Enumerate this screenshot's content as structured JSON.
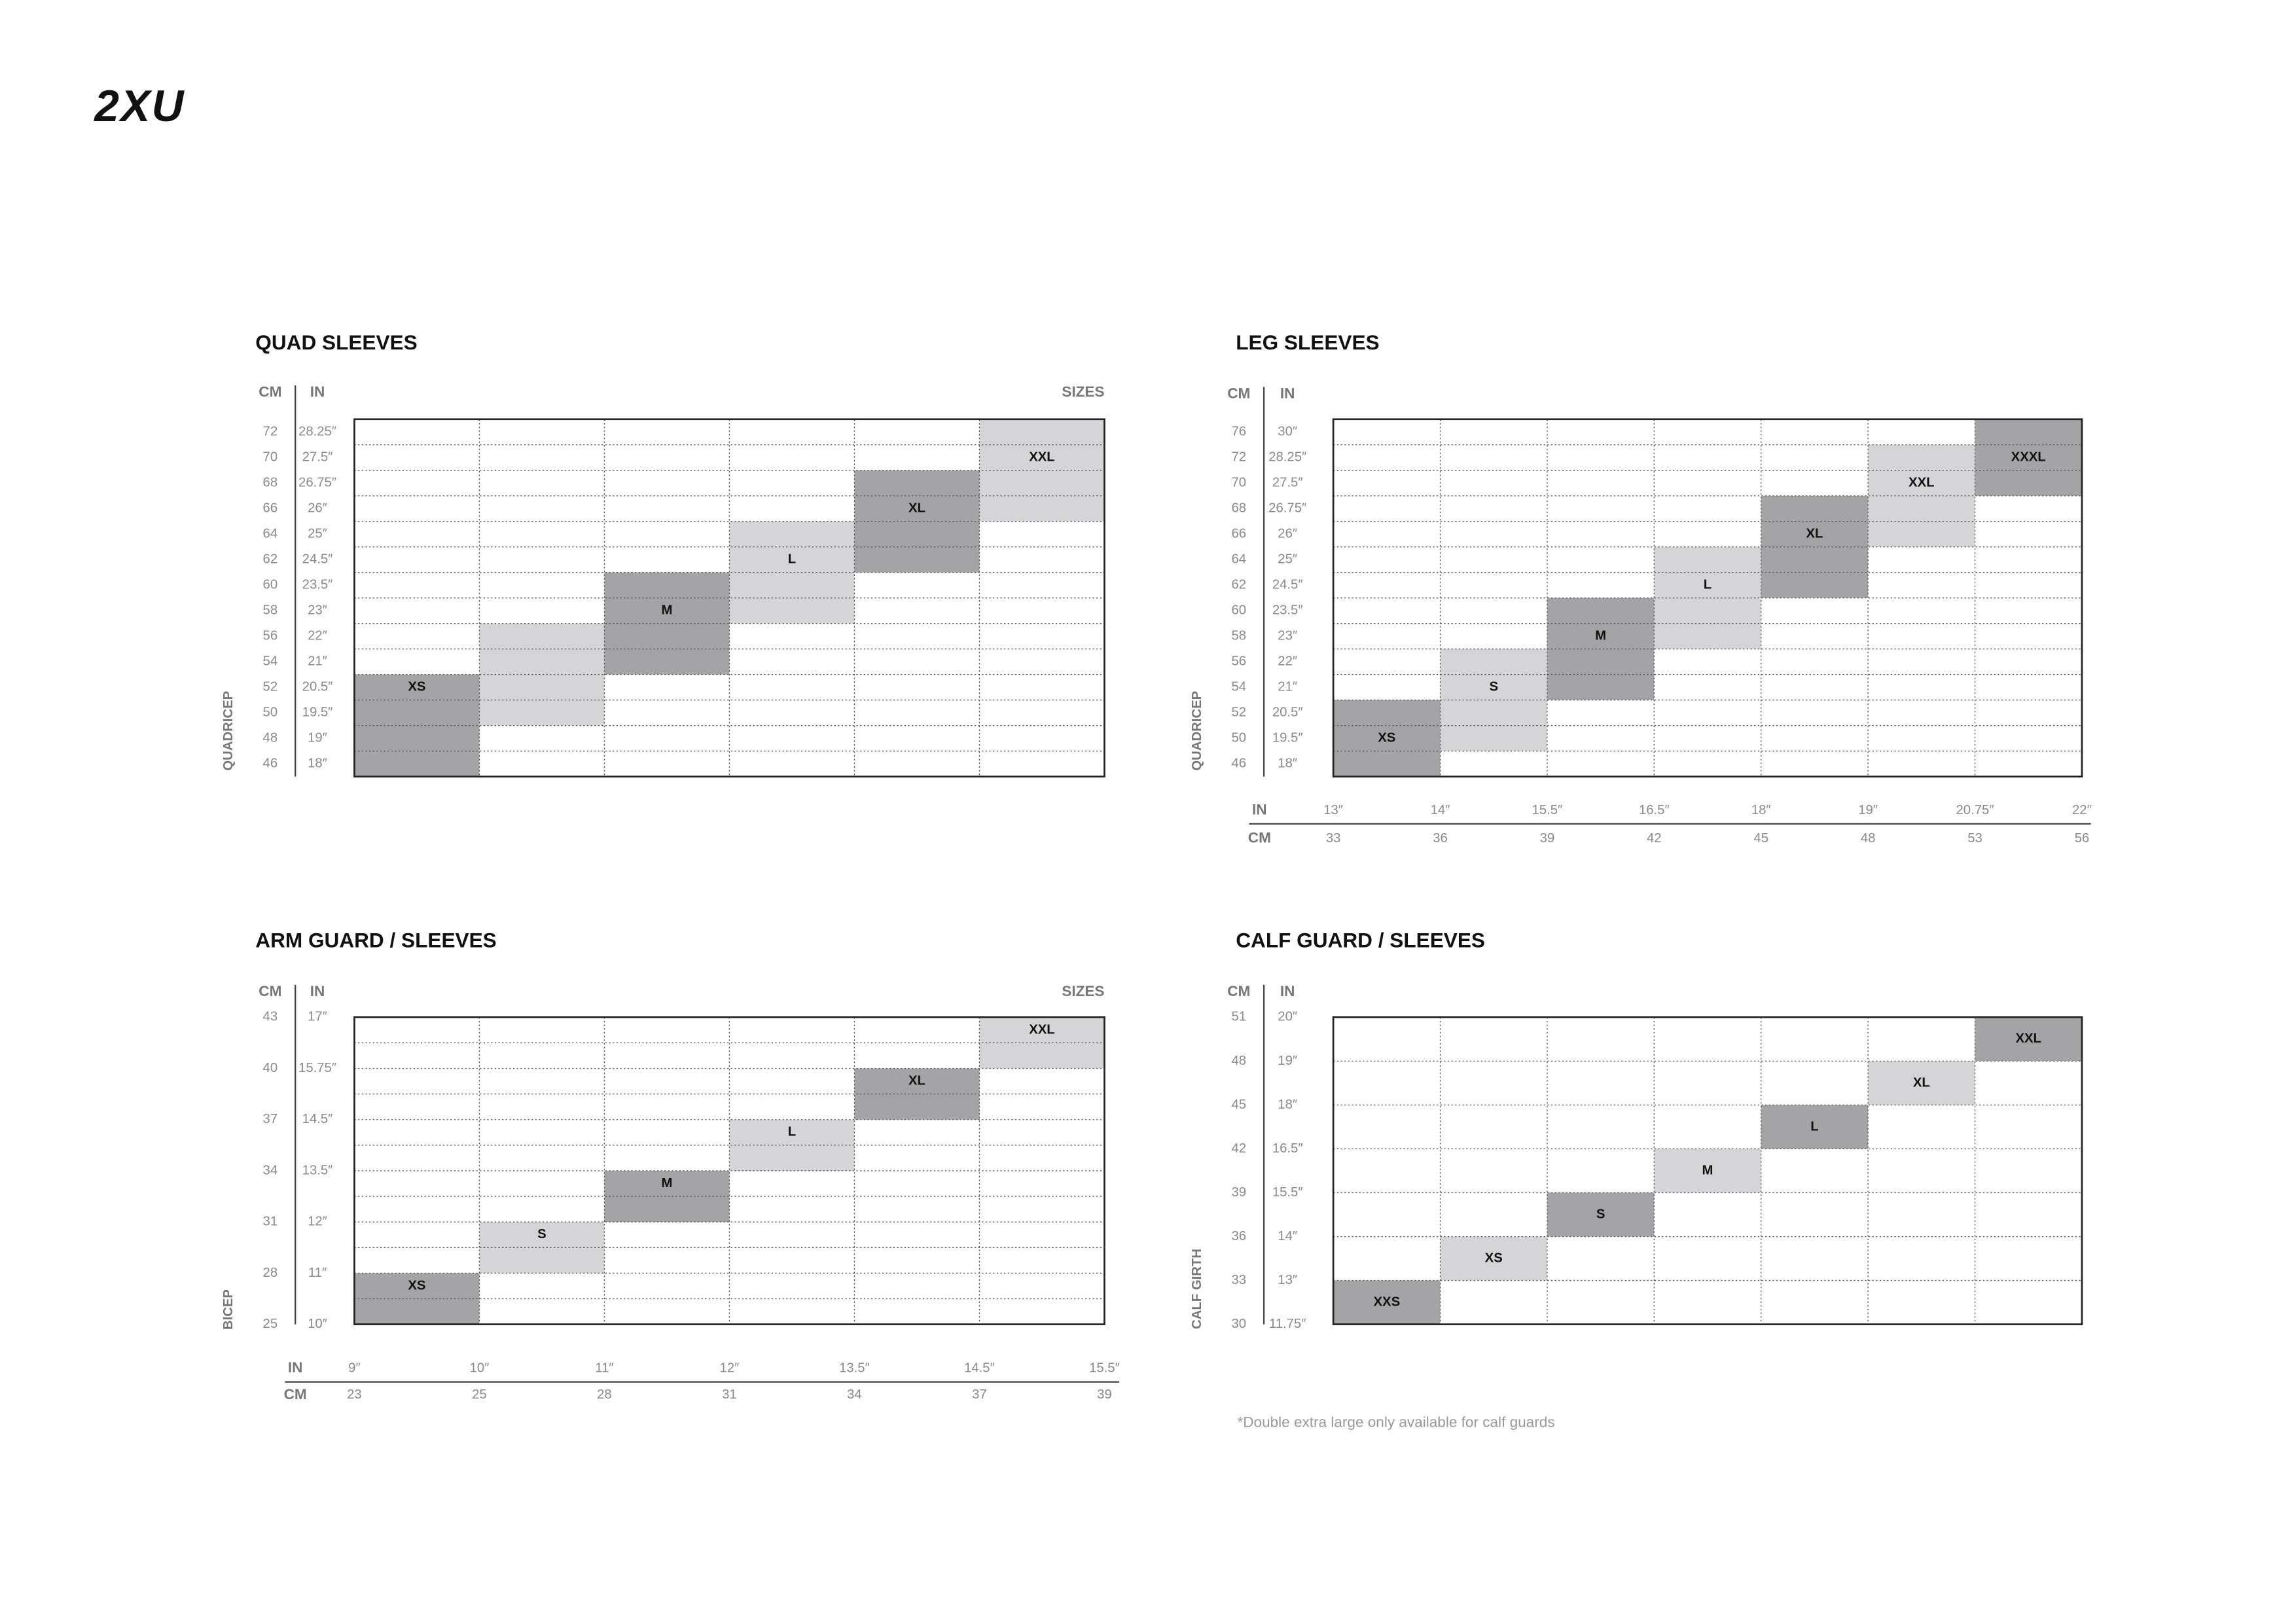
{
  "header": {
    "logo": "2XU"
  },
  "panels": [
    {
      "title": "QUAD SLEEVES",
      "cm_header": "CM",
      "in_header": "IN",
      "sizes_header": "SIZES",
      "axis_label": "QUADRICEP",
      "rows_cm": [
        72,
        70,
        68,
        66,
        64,
        62,
        60,
        58,
        56,
        54,
        52,
        50,
        48,
        46
      ],
      "rows_in": [
        "28.25″",
        "27.5″",
        "26.75″",
        "26″",
        "25″",
        "24.5″",
        "23.5″",
        "23″",
        "22″",
        "21″",
        "20.5″",
        "19.5″",
        "19″",
        "18″"
      ],
      "sizes": [
        "XS",
        "M",
        "L",
        "XL",
        "XXL"
      ]
    },
    {
      "title": "LEG SLEEVES",
      "cm_header": "CM",
      "in_header": "IN",
      "axis_label": "QUADRICEP",
      "rows_cm": [
        76,
        72,
        70,
        68,
        66,
        64,
        62,
        60,
        58,
        56,
        54,
        52,
        50,
        46
      ],
      "rows_in": [
        "30″",
        "28.25″",
        "27.5″",
        "26.75″",
        "26″",
        "25″",
        "24.5″",
        "23.5″",
        "23″",
        "22″",
        "21″",
        "20.5″",
        "19.5″",
        "18″"
      ],
      "sizes": [
        "XS",
        "S",
        "M",
        "L",
        "XL",
        "XXL",
        "XXXL"
      ],
      "bottom": {
        "in_header": "IN",
        "cm_header": "CM",
        "in": [
          "13″",
          "14″",
          "15.5″",
          "16.5″",
          "18″",
          "19″",
          "20.75″",
          "22″"
        ],
        "cm": [
          33,
          36,
          39,
          42,
          45,
          48,
          53,
          56
        ]
      }
    },
    {
      "title": "ARM GUARD / SLEEVES",
      "cm_header": "CM",
      "in_header": "IN",
      "sizes_header": "SIZES",
      "axis_label": "BICEP",
      "rows_cm": [
        43,
        40,
        37,
        34,
        31,
        28,
        25
      ],
      "rows_in": [
        "17″",
        "15.75″",
        "14.5″",
        "13.5″",
        "12″",
        "11″",
        "10″"
      ],
      "sizes": [
        "XS",
        "S",
        "M",
        "L",
        "XL",
        "XXL"
      ],
      "bottom": {
        "in_header": "IN",
        "cm_header": "CM",
        "in": [
          "9″",
          "10″",
          "11″",
          "12″",
          "13.5″",
          "14.5″",
          "15.5″"
        ],
        "cm": [
          23,
          25,
          28,
          31,
          34,
          37,
          39
        ]
      }
    },
    {
      "title": "CALF GUARD / SLEEVES",
      "cm_header": "CM",
      "in_header": "IN",
      "axis_label": "CALF GIRTH",
      "rows_cm": [
        51,
        48,
        45,
        42,
        39,
        36,
        33,
        30
      ],
      "rows_in": [
        "20″",
        "19″",
        "18″",
        "16.5″",
        "15.5″",
        "14″",
        "13″",
        "11.75″"
      ],
      "sizes": [
        "XXS",
        "XS",
        "S",
        "M",
        "L",
        "XL",
        "XXL"
      ]
    }
  ],
  "footnote": "*Double extra large only available for calf guards"
}
